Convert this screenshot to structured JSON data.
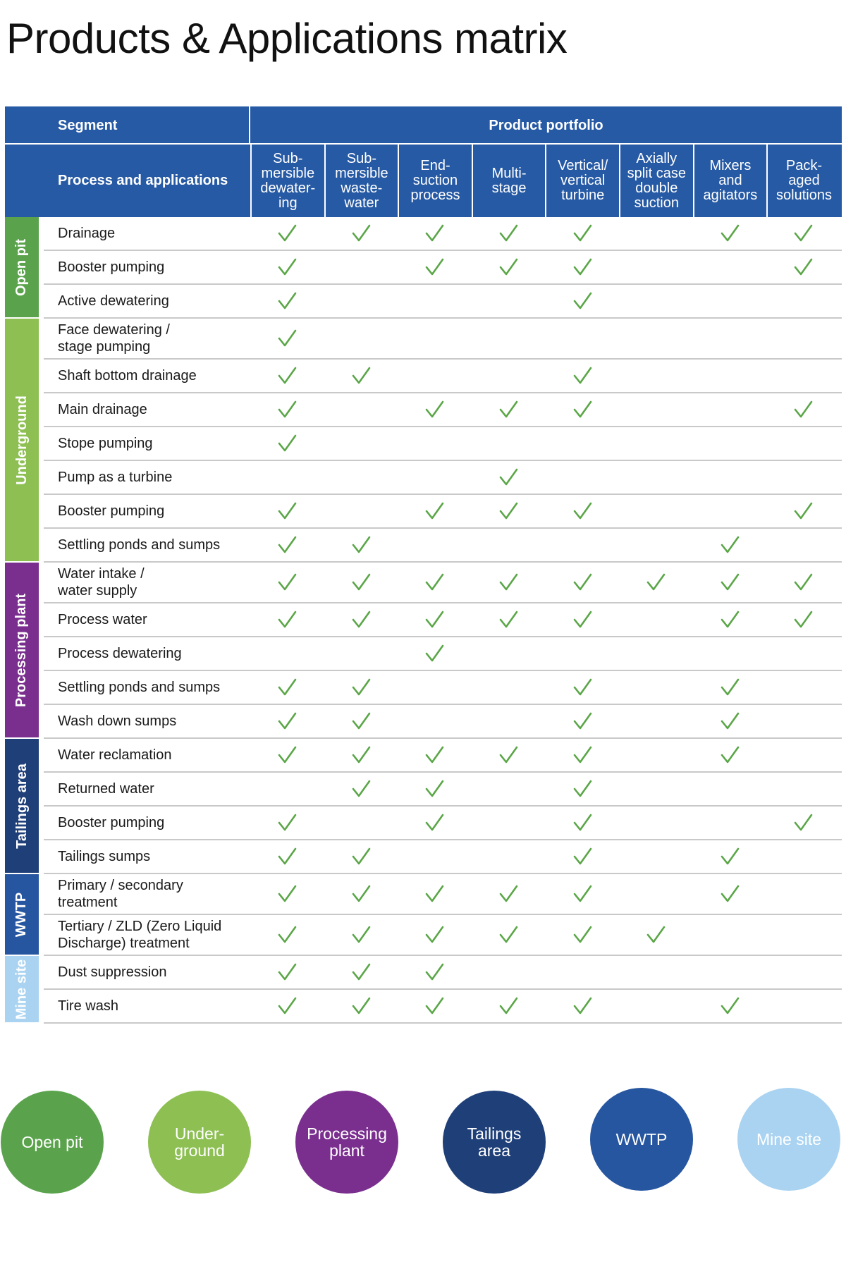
{
  "title": "Products & Applications matrix",
  "header": {
    "segment_label": "Segment",
    "process_label": "Process and applications",
    "portfolio_label": "Product portfolio"
  },
  "columns": [
    "Sub-\nmersible\ndewater-\ning",
    "Sub-\nmersible\nwaste-\nwater",
    "End-\nsuction\nprocess",
    "Multi-\nstage",
    "Vertical/\nvertical\nturbine",
    "Axially\nsplit case\ndouble\nsuction",
    "Mixers\nand\nagitators",
    "Pack-\naged\nsolutions"
  ],
  "colors": {
    "header": "#275aa4",
    "check": "#5aa647",
    "open_pit": "#5aa34c",
    "underground": "#8dbf53",
    "processing_plant": "#7a2f8f",
    "tailings_area": "#1f3f78",
    "wwtp": "#2756a0",
    "mine_site": "#a9d3f1"
  },
  "segments": [
    {
      "name": "Open pit",
      "color": "#5aa34c",
      "rows": [
        {
          "label": "Drainage",
          "checks": [
            1,
            1,
            1,
            1,
            1,
            0,
            1,
            1
          ]
        },
        {
          "label": "Booster pumping",
          "checks": [
            1,
            0,
            1,
            1,
            1,
            0,
            0,
            1
          ]
        },
        {
          "label": "Active dewatering",
          "checks": [
            1,
            0,
            0,
            0,
            1,
            0,
            0,
            0
          ]
        }
      ]
    },
    {
      "name": "Underground",
      "color": "#8dbf53",
      "rows": [
        {
          "label": "Face dewatering /\nstage pumping",
          "checks": [
            1,
            0,
            0,
            0,
            0,
            0,
            0,
            0
          ]
        },
        {
          "label": "Shaft bottom drainage",
          "checks": [
            1,
            1,
            0,
            0,
            1,
            0,
            0,
            0
          ]
        },
        {
          "label": "Main drainage",
          "checks": [
            1,
            0,
            1,
            1,
            1,
            0,
            0,
            1
          ]
        },
        {
          "label": "Stope pumping",
          "checks": [
            1,
            0,
            0,
            0,
            0,
            0,
            0,
            0
          ]
        },
        {
          "label": "Pump as a turbine",
          "checks": [
            0,
            0,
            0,
            1,
            0,
            0,
            0,
            0
          ]
        },
        {
          "label": "Booster pumping",
          "checks": [
            1,
            0,
            1,
            1,
            1,
            0,
            0,
            1
          ]
        },
        {
          "label": "Settling ponds and sumps",
          "checks": [
            1,
            1,
            0,
            0,
            0,
            0,
            1,
            0
          ]
        }
      ]
    },
    {
      "name": "Processing plant",
      "color": "#7a2f8f",
      "rows": [
        {
          "label": "Water intake /\nwater supply",
          "checks": [
            1,
            1,
            1,
            1,
            1,
            1,
            1,
            1
          ]
        },
        {
          "label": "Process water",
          "checks": [
            1,
            1,
            1,
            1,
            1,
            0,
            1,
            1
          ]
        },
        {
          "label": "Process dewatering",
          "checks": [
            0,
            0,
            1,
            0,
            0,
            0,
            0,
            0
          ]
        },
        {
          "label": "Settling ponds and sumps",
          "checks": [
            1,
            1,
            0,
            0,
            1,
            0,
            1,
            0
          ]
        },
        {
          "label": "Wash down sumps",
          "checks": [
            1,
            1,
            0,
            0,
            1,
            0,
            1,
            0
          ]
        }
      ]
    },
    {
      "name": "Tailings area",
      "color": "#1f3f78",
      "rows": [
        {
          "label": "Water reclamation",
          "checks": [
            1,
            1,
            1,
            1,
            1,
            0,
            1,
            0
          ]
        },
        {
          "label": "Returned water",
          "checks": [
            0,
            1,
            1,
            0,
            1,
            0,
            0,
            0
          ]
        },
        {
          "label": "Booster pumping",
          "checks": [
            1,
            0,
            1,
            0,
            1,
            0,
            0,
            1
          ]
        },
        {
          "label": "Tailings sumps",
          "checks": [
            1,
            1,
            0,
            0,
            1,
            0,
            1,
            0
          ]
        }
      ]
    },
    {
      "name": "WWTP",
      "color": "#2756a0",
      "rows": [
        {
          "label": "Primary / secondary\ntreatment",
          "checks": [
            1,
            1,
            1,
            1,
            1,
            0,
            1,
            0
          ]
        },
        {
          "label": "Tertiary / ZLD (Zero Liquid\nDischarge) treatment",
          "checks": [
            1,
            1,
            1,
            1,
            1,
            1,
            0,
            0
          ]
        }
      ]
    },
    {
      "name": "Mine site",
      "color": "#a9d3f1",
      "rows": [
        {
          "label": "Dust suppression",
          "checks": [
            1,
            1,
            1,
            0,
            0,
            0,
            0,
            0
          ]
        },
        {
          "label": "Tire wash",
          "checks": [
            1,
            1,
            1,
            1,
            1,
            0,
            1,
            0
          ]
        }
      ]
    }
  ],
  "legend": [
    {
      "label": "Open pit",
      "color": "#5aa34c"
    },
    {
      "label": "Under-\nground",
      "color": "#8dbf53"
    },
    {
      "label": "Processing\nplant",
      "color": "#7a2f8f"
    },
    {
      "label": "Tailings\narea",
      "color": "#1f3f78"
    },
    {
      "label": "WWTP",
      "color": "#2756a0"
    },
    {
      "label": "Mine site",
      "color": "#a9d3f1"
    }
  ]
}
